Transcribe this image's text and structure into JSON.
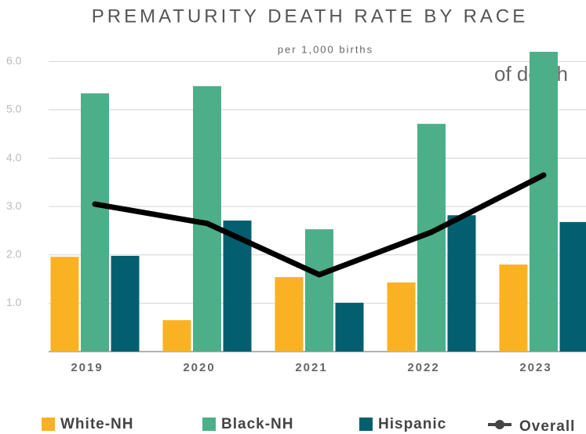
{
  "chart_data": {
    "type": "bar",
    "title": "PREMATURITY DEATH RATE BY RACE",
    "subtitle": "per 1,000 births",
    "annotation": "of death",
    "categories": [
      "2019",
      "2020",
      "2021",
      "2022",
      "2023"
    ],
    "series": [
      {
        "name": "White-NH",
        "color": "#fbb124",
        "values": [
          1.96,
          0.65,
          1.54,
          1.43,
          1.8
        ]
      },
      {
        "name": "Black-NH",
        "color": "#4caf8a",
        "values": [
          5.34,
          5.49,
          2.53,
          4.71,
          6.2
        ]
      },
      {
        "name": "Hispanic",
        "color": "#035f70",
        "values": [
          1.98,
          2.71,
          1.01,
          2.82,
          2.68
        ]
      },
      {
        "name": "Overall",
        "color": "#000000",
        "type": "line",
        "values": [
          3.05,
          2.65,
          1.59,
          2.47,
          3.65
        ]
      }
    ],
    "ylim": [
      0,
      6.2
    ],
    "yticks": [
      {
        "value": 1,
        "label": "1.0"
      },
      {
        "value": 2,
        "label": "2.0"
      },
      {
        "value": 3,
        "label": "3.0"
      },
      {
        "value": 4,
        "label": "4.0"
      },
      {
        "value": 5,
        "label": "5.0"
      },
      {
        "value": 6,
        "label": "6.0"
      }
    ],
    "grid": true
  }
}
